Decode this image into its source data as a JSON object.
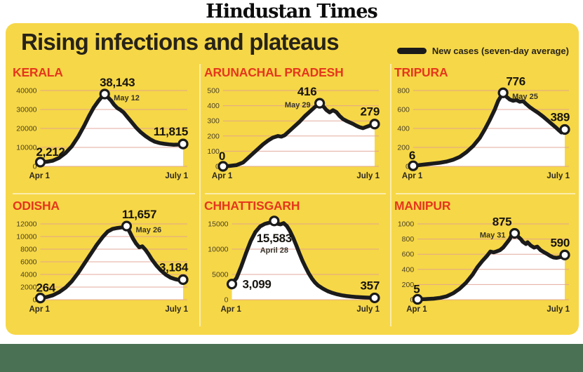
{
  "masthead": "Hindustan Times",
  "title": "Rising infections and plateaus",
  "legend": {
    "label": "New cases (seven-day average)",
    "swatch": "thick-black-line"
  },
  "colors": {
    "card_yellow": "#f6d747",
    "state_red": "#e5371d",
    "line_black": "#1b1b1b",
    "grid_pink": "#e0a193",
    "area_white": "#ffffff",
    "dot_fill": "#ffffff",
    "footer_green": "#4a7153",
    "title_dark": "#272319"
  },
  "x_axis": {
    "start_label": "Apr 1",
    "end_label": "July 1",
    "span_days": 91
  },
  "chart_data": [
    {
      "type": "area",
      "state": "KERALA",
      "y_ticks": [
        0,
        10000,
        20000,
        30000,
        40000
      ],
      "y_max": 40000,
      "start": {
        "value": 2212,
        "label": "2,212",
        "date": "Apr 1",
        "label_pos": "above"
      },
      "peak": {
        "value": 38143,
        "label": "38,143",
        "date": "May 12",
        "day": 41,
        "date_side": "right"
      },
      "end": {
        "value": 11815,
        "label": "11,815",
        "date": "July 1"
      },
      "points": [
        [
          0,
          2212
        ],
        [
          4,
          2400
        ],
        [
          8,
          3000
        ],
        [
          12,
          4500
        ],
        [
          16,
          7000
        ],
        [
          20,
          10500
        ],
        [
          24,
          15500
        ],
        [
          28,
          21500
        ],
        [
          31,
          26500
        ],
        [
          34,
          31000
        ],
        [
          37,
          34500
        ],
        [
          39,
          36500
        ],
        [
          41,
          38143
        ],
        [
          43,
          36500
        ],
        [
          45,
          34800
        ],
        [
          47,
          32500
        ],
        [
          49,
          30800
        ],
        [
          51,
          29800
        ],
        [
          53,
          28500
        ],
        [
          55,
          26500
        ],
        [
          58,
          23500
        ],
        [
          61,
          20500
        ],
        [
          64,
          18000
        ],
        [
          67,
          16000
        ],
        [
          70,
          14300
        ],
        [
          73,
          13000
        ],
        [
          76,
          12300
        ],
        [
          79,
          11900
        ],
        [
          82,
          11600
        ],
        [
          85,
          11400
        ],
        [
          88,
          11500
        ],
        [
          91,
          11815
        ]
      ]
    },
    {
      "type": "area",
      "state": "ARUNACHAL PRADESH",
      "y_ticks": [
        0,
        100,
        200,
        300,
        400,
        500
      ],
      "y_max": 500,
      "start": {
        "value": 0,
        "label": "0",
        "date": "Apr 1",
        "label_pos": "above"
      },
      "peak": {
        "value": 416,
        "label": "416",
        "date": "May 29",
        "day": 58,
        "date_side": "left"
      },
      "end": {
        "value": 279,
        "label": "279",
        "date": "July 1"
      },
      "points": [
        [
          0,
          0
        ],
        [
          4,
          3
        ],
        [
          8,
          8
        ],
        [
          12,
          25
        ],
        [
          15,
          55
        ],
        [
          18,
          85
        ],
        [
          21,
          115
        ],
        [
          24,
          145
        ],
        [
          27,
          170
        ],
        [
          30,
          190
        ],
        [
          33,
          200
        ],
        [
          35,
          196
        ],
        [
          37,
          205
        ],
        [
          40,
          235
        ],
        [
          43,
          265
        ],
        [
          46,
          295
        ],
        [
          49,
          330
        ],
        [
          52,
          360
        ],
        [
          55,
          390
        ],
        [
          58,
          416
        ],
        [
          60,
          398
        ],
        [
          62,
          372
        ],
        [
          64,
          356
        ],
        [
          66,
          370
        ],
        [
          68,
          358
        ],
        [
          70,
          332
        ],
        [
          72,
          312
        ],
        [
          74,
          300
        ],
        [
          76,
          290
        ],
        [
          78,
          280
        ],
        [
          80,
          268
        ],
        [
          82,
          258
        ],
        [
          84,
          252
        ],
        [
          86,
          260
        ],
        [
          88,
          268
        ],
        [
          91,
          279
        ]
      ]
    },
    {
      "type": "area",
      "state": "TRIPURA",
      "y_ticks": [
        0,
        200,
        400,
        600,
        800
      ],
      "y_max": 800,
      "start": {
        "value": 6,
        "label": "6",
        "date": "Apr 1",
        "label_pos": "above"
      },
      "peak": {
        "value": 776,
        "label": "776",
        "date": "May 25",
        "day": 54,
        "date_side": "right"
      },
      "end": {
        "value": 389,
        "label": "389",
        "date": "July 1"
      },
      "points": [
        [
          0,
          6
        ],
        [
          4,
          14
        ],
        [
          8,
          22
        ],
        [
          12,
          30
        ],
        [
          16,
          38
        ],
        [
          20,
          50
        ],
        [
          24,
          70
        ],
        [
          28,
          100
        ],
        [
          32,
          150
        ],
        [
          36,
          215
        ],
        [
          40,
          300
        ],
        [
          43,
          390
        ],
        [
          46,
          490
        ],
        [
          49,
          600
        ],
        [
          51,
          690
        ],
        [
          54,
          776
        ],
        [
          56,
          735
        ],
        [
          58,
          705
        ],
        [
          60,
          692
        ],
        [
          62,
          700
        ],
        [
          64,
          682
        ],
        [
          66,
          688
        ],
        [
          68,
          655
        ],
        [
          70,
          625
        ],
        [
          72,
          600
        ],
        [
          75,
          565
        ],
        [
          78,
          525
        ],
        [
          81,
          480
        ],
        [
          84,
          435
        ],
        [
          86,
          405
        ],
        [
          88,
          372
        ],
        [
          89,
          358
        ],
        [
          91,
          389
        ]
      ]
    },
    {
      "type": "area",
      "state": "ODISHA",
      "y_ticks": [
        0,
        2000,
        4000,
        6000,
        8000,
        10000,
        12000
      ],
      "y_max": 12000,
      "start": {
        "value": 264,
        "label": "264",
        "date": "Apr 1",
        "label_pos": "above"
      },
      "peak": {
        "value": 11657,
        "label": "11,657",
        "date": "May 26",
        "day": 55,
        "date_side": "right"
      },
      "end": {
        "value": 3184,
        "label": "3,184",
        "date": "July 1"
      },
      "points": [
        [
          0,
          264
        ],
        [
          4,
          420
        ],
        [
          8,
          700
        ],
        [
          12,
          1200
        ],
        [
          16,
          1900
        ],
        [
          20,
          2900
        ],
        [
          24,
          4200
        ],
        [
          28,
          5700
        ],
        [
          32,
          7200
        ],
        [
          36,
          8700
        ],
        [
          40,
          10000
        ],
        [
          43,
          10800
        ],
        [
          46,
          11200
        ],
        [
          49,
          11350
        ],
        [
          52,
          11450
        ],
        [
          55,
          11657
        ],
        [
          57,
          10700
        ],
        [
          59,
          9700
        ],
        [
          61,
          8900
        ],
        [
          63,
          8300
        ],
        [
          65,
          8450
        ],
        [
          67,
          7900
        ],
        [
          69,
          7200
        ],
        [
          71,
          6400
        ],
        [
          74,
          5400
        ],
        [
          77,
          4600
        ],
        [
          80,
          3950
        ],
        [
          83,
          3500
        ],
        [
          86,
          3250
        ],
        [
          88,
          3150
        ],
        [
          91,
          3184
        ]
      ]
    },
    {
      "type": "area",
      "state": "CHHATTISGARH",
      "y_ticks": [
        0,
        5000,
        10000,
        15000
      ],
      "y_max": 15000,
      "start": {
        "value": 3099,
        "label": "3,099",
        "date": "Apr 1",
        "label_pos": "right"
      },
      "peak": {
        "value": 15583,
        "label": "15,583",
        "date": "April 28",
        "day": 27,
        "date_side": "below"
      },
      "end": {
        "value": 357,
        "label": "357",
        "date": "July 1"
      },
      "points": [
        [
          0,
          3099
        ],
        [
          3,
          4300
        ],
        [
          6,
          6600
        ],
        [
          9,
          9200
        ],
        [
          12,
          11600
        ],
        [
          15,
          13400
        ],
        [
          18,
          14500
        ],
        [
          21,
          15000
        ],
        [
          24,
          15250
        ],
        [
          27,
          15583
        ],
        [
          29,
          15050
        ],
        [
          31,
          14900
        ],
        [
          33,
          15150
        ],
        [
          35,
          14600
        ],
        [
          37,
          13600
        ],
        [
          39,
          12300
        ],
        [
          41,
          10800
        ],
        [
          43,
          9200
        ],
        [
          45,
          7700
        ],
        [
          47,
          6400
        ],
        [
          49,
          5200
        ],
        [
          51,
          4200
        ],
        [
          53,
          3400
        ],
        [
          55,
          2800
        ],
        [
          58,
          2200
        ],
        [
          61,
          1700
        ],
        [
          64,
          1350
        ],
        [
          67,
          1080
        ],
        [
          70,
          880
        ],
        [
          73,
          730
        ],
        [
          76,
          620
        ],
        [
          79,
          540
        ],
        [
          82,
          480
        ],
        [
          85,
          430
        ],
        [
          88,
          395
        ],
        [
          91,
          357
        ]
      ]
    },
    {
      "type": "area",
      "state": "MANIPUR",
      "y_ticks": [
        0,
        200,
        400,
        600,
        800,
        1000
      ],
      "y_max": 1000,
      "start": {
        "value": 5,
        "label": "5",
        "date": "Apr 1",
        "label_pos": "above"
      },
      "peak": {
        "value": 875,
        "label": "875",
        "date": "May 31",
        "day": 60,
        "date_side": "left"
      },
      "end": {
        "value": 590,
        "label": "590",
        "date": "July 1"
      },
      "points": [
        [
          0,
          5
        ],
        [
          5,
          8
        ],
        [
          10,
          14
        ],
        [
          14,
          25
        ],
        [
          18,
          45
        ],
        [
          22,
          85
        ],
        [
          26,
          145
        ],
        [
          30,
          225
        ],
        [
          34,
          330
        ],
        [
          37,
          430
        ],
        [
          40,
          510
        ],
        [
          43,
          580
        ],
        [
          45,
          635
        ],
        [
          47,
          625
        ],
        [
          49,
          638
        ],
        [
          51,
          655
        ],
        [
          53,
          690
        ],
        [
          55,
          745
        ],
        [
          57,
          800
        ],
        [
          58,
          845
        ],
        [
          60,
          875
        ],
        [
          62,
          835
        ],
        [
          64,
          795
        ],
        [
          65,
          765
        ],
        [
          67,
          735
        ],
        [
          68,
          758
        ],
        [
          70,
          715
        ],
        [
          72,
          688
        ],
        [
          74,
          700
        ],
        [
          76,
          655
        ],
        [
          78,
          628
        ],
        [
          80,
          605
        ],
        [
          82,
          578
        ],
        [
          84,
          558
        ],
        [
          86,
          552
        ],
        [
          88,
          562
        ],
        [
          91,
          590
        ]
      ]
    }
  ]
}
